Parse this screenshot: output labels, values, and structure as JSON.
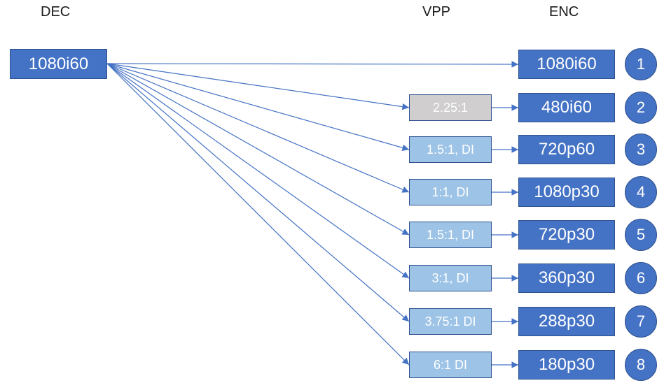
{
  "headers": {
    "dec": "DEC",
    "vpp": "VPP",
    "enc": "ENC"
  },
  "source": {
    "label": "1080i60"
  },
  "pipelines": [
    {
      "number": "1",
      "vpp": null,
      "enc": "1080i60"
    },
    {
      "number": "2",
      "vpp": "2.25:1",
      "vpp_style": "gray",
      "enc": "480i60"
    },
    {
      "number": "3",
      "vpp": "1.5:1, DI",
      "vpp_style": "light",
      "enc": "720p60"
    },
    {
      "number": "4",
      "vpp": "1:1, DI",
      "vpp_style": "light",
      "enc": "1080p30"
    },
    {
      "number": "5",
      "vpp": "1.5:1, DI",
      "vpp_style": "light",
      "enc": "720p30"
    },
    {
      "number": "6",
      "vpp": "3:1, DI",
      "vpp_style": "light",
      "enc": "360p30"
    },
    {
      "number": "7",
      "vpp": "3.75:1 DI",
      "vpp_style": "light",
      "enc": "288p30"
    },
    {
      "number": "8",
      "vpp": "6:1 DI",
      "vpp_style": "light",
      "enc": "180p30"
    }
  ],
  "colors": {
    "box": "#4472c4",
    "border": "#2f528f",
    "vpp_light": "#9dc3e6",
    "vpp_gray": "#d0cece",
    "arrow": "#4472c4"
  }
}
